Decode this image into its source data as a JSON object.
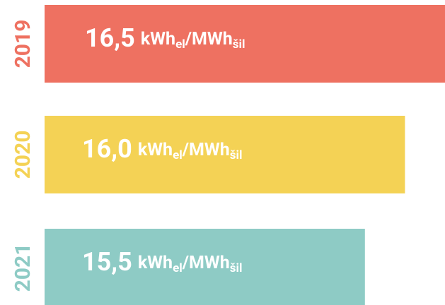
{
  "chart_data": {
    "type": "bar",
    "orientation": "horizontal",
    "categories": [
      "2019",
      "2020",
      "2021"
    ],
    "values": [
      16.5,
      16.0,
      15.5
    ],
    "value_labels": [
      "16,5",
      "16,0",
      "15,5"
    ],
    "unit": {
      "base": "kWh",
      "sub": "el",
      "base2": "/MWh",
      "sub2": "šil"
    },
    "colors": [
      "#ee7161",
      "#f4d255",
      "#8ecbc5"
    ],
    "xlim": [
      11.5,
      16.5
    ]
  }
}
